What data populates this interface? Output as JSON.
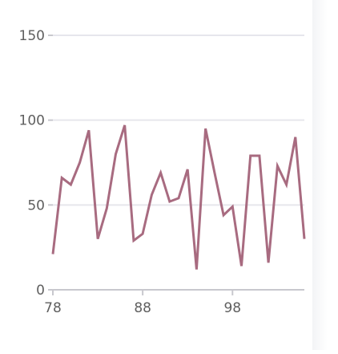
{
  "colors": {
    "series_line": "#a86b80",
    "gridline": "#e6e6ec",
    "axis_line": "#c8c8ce",
    "tick_text": "#5f5f5f"
  },
  "chart_data": {
    "type": "line",
    "title": "",
    "xlabel": "",
    "ylabel": "",
    "grid": "horizontal",
    "legend": "none",
    "xlim": [
      78,
      106
    ],
    "ylim": [
      0,
      150
    ],
    "x_ticks": [
      "78",
      "88",
      "98"
    ],
    "y_ticks": [
      "0",
      "50",
      "100",
      "150"
    ],
    "series": [
      {
        "x": [
          78,
          79,
          80,
          81,
          82,
          83,
          84,
          85,
          86,
          87,
          88,
          89,
          90,
          91,
          92,
          93,
          94,
          95,
          96,
          97,
          98,
          99,
          100,
          101,
          102,
          103,
          104,
          105,
          106
        ],
        "y": [
          21,
          66,
          62,
          75,
          94,
          30,
          48,
          80,
          97,
          29,
          33,
          56,
          69,
          52,
          54,
          71,
          12,
          95,
          69,
          44,
          49,
          14,
          79,
          79,
          16,
          73,
          62,
          90,
          30
        ]
      }
    ]
  }
}
